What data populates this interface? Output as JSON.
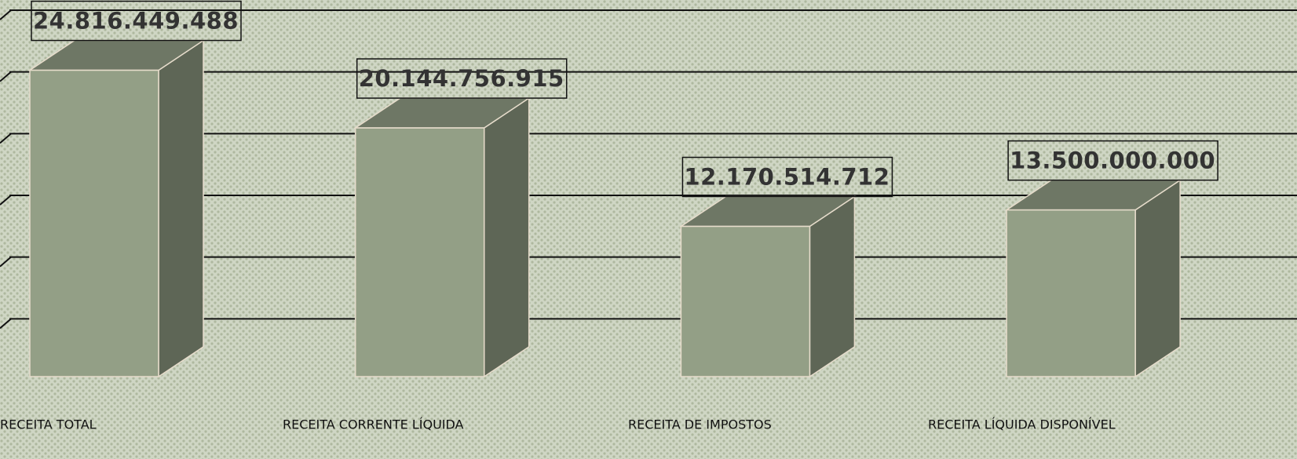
{
  "chart_data": {
    "type": "bar3d",
    "categories": [
      "RECEITA TOTAL",
      "RECEITA CORRENTE LÍQUIDA",
      "RECEITA DE IMPOSTOS",
      "RECEITA LÍQUIDA DISPONÍVEL"
    ],
    "values": [
      24816449488,
      20144756915,
      12170514712,
      13500000000
    ],
    "value_labels": [
      "24.816.449.488",
      "20.144.756.915",
      "12.170.514.712",
      "13.500.000.000"
    ],
    "color": "#939f86",
    "ylim": [
      0,
      30000000000
    ],
    "yticks": [
      5000000000,
      10000000000,
      15000000000,
      20000000000,
      25000000000,
      30000000000
    ],
    "grid": true
  }
}
